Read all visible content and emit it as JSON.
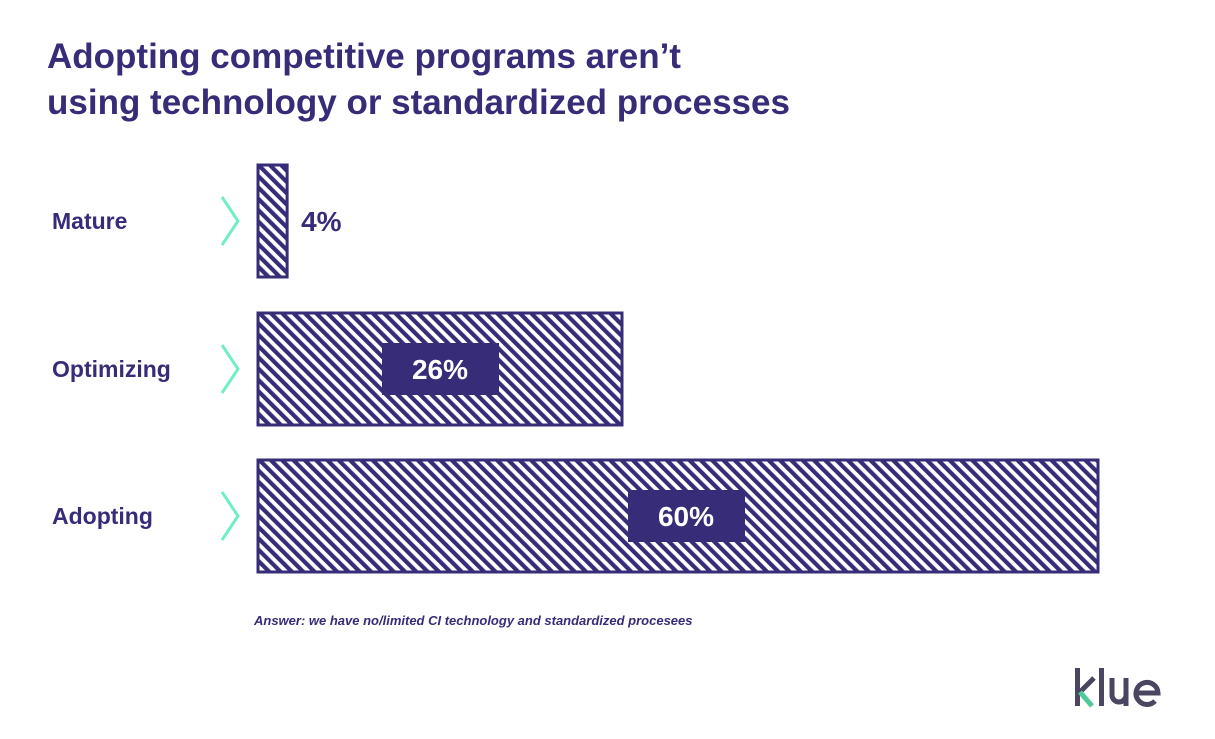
{
  "chart_data": {
    "type": "bar",
    "orientation": "horizontal",
    "title_lines": [
      "Adopting competitive programs aren’t",
      "using technology or standardized processes"
    ],
    "categories": [
      "Mature",
      "Optimizing",
      "Adopting"
    ],
    "values": [
      4,
      26,
      60
    ],
    "value_labels": [
      "4%",
      "26%",
      "60%"
    ],
    "unit": "%",
    "note": "Answer: we have no/limited CI technology and standardized procesees",
    "grid": false,
    "colors": {
      "bar": "#372c78",
      "chevron": "#6ef0c4",
      "logo_text": "#4a4560",
      "logo_accent": "#4fc99a"
    }
  },
  "logo": {
    "text": "klue"
  }
}
